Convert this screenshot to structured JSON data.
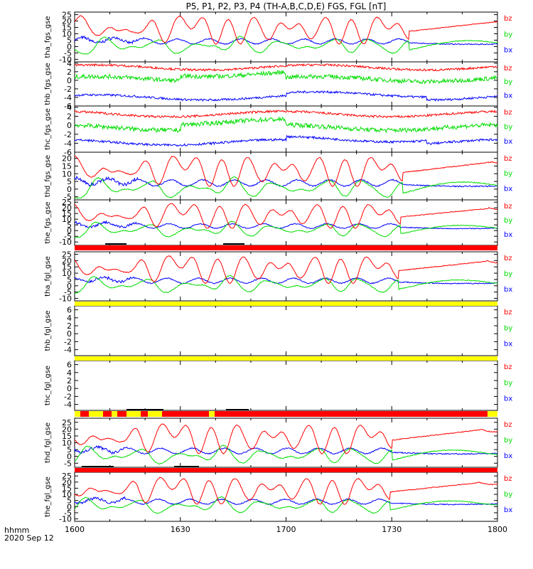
{
  "title": "P5, P1, P2, P3, P4 (TH-A,B,C,D,E) FGS, FGL [nT]",
  "footer": {
    "line1": "hhmm",
    "line2": "2020 Sep 12"
  },
  "colors": {
    "bx": "#0000ff",
    "by": "#00dd00",
    "bz": "#ff0000",
    "flag_red": "#ff0000",
    "flag_yellow": "#ffff00",
    "flag_black": "#000000"
  },
  "chart_data": {
    "type": "line",
    "x_label": "hhmm",
    "x_range": [
      "1600",
      "1800"
    ],
    "x_ticks": [
      "1600",
      "1630",
      "1700",
      "1730",
      "1800"
    ],
    "panels": [
      {
        "ylabel": "tha_fgs_gse",
        "y_range": [
          -12,
          27
        ],
        "y_ticks": [
          -10,
          -5,
          0,
          5,
          10,
          15,
          20,
          25
        ],
        "legend": [
          "bz",
          "by",
          "bx"
        ],
        "kind": "wavy"
      },
      {
        "ylabel": "thb_fgs_gse",
        "y_range": [
          -6,
          4.3
        ],
        "y_ticks": [
          -6,
          -4,
          -2,
          0,
          2,
          4
        ],
        "legend": [
          "bz",
          "by",
          "bx"
        ],
        "kind": "flat",
        "levels": {
          "bz": 3,
          "by": 0.3,
          "bx": -4
        }
      },
      {
        "ylabel": "thc_fgs_gse",
        "y_range": [
          -6,
          4.3
        ],
        "y_ticks": [
          -6,
          -4,
          -2,
          0,
          2,
          4
        ],
        "legend": [
          "bz",
          "by",
          "bx"
        ],
        "kind": "flat",
        "levels": {
          "bz": 2.5,
          "by": -0.5,
          "bx": -3.8
        }
      },
      {
        "ylabel": "thd_fgs_gse",
        "y_range": [
          -7,
          24
        ],
        "y_ticks": [
          -5,
          0,
          5,
          10,
          15,
          20
        ],
        "legend": [
          "bz",
          "by",
          "bx"
        ],
        "kind": "wavy"
      },
      {
        "ylabel": "the_fgs_gse",
        "y_range": [
          -13,
          27
        ],
        "y_ticks": [
          -10,
          -5,
          0,
          5,
          10,
          15,
          20,
          25
        ],
        "legend": [
          "bz",
          "by",
          "bx"
        ],
        "kind": "wavy"
      },
      {
        "ylabel": "tha_fgl_gse",
        "y_range": [
          -12,
          27
        ],
        "y_ticks": [
          -10,
          -5,
          0,
          5,
          10,
          15,
          20,
          25
        ],
        "legend": [
          "bz",
          "by",
          "bx"
        ],
        "kind": "wavy"
      },
      {
        "ylabel": "thb_fgl_gse",
        "y_range": [
          -5.5,
          7
        ],
        "y_ticks": [
          -4,
          -2,
          0,
          2,
          4,
          6
        ],
        "legend": [
          "bz",
          "by",
          "bx"
        ],
        "kind": "empty"
      },
      {
        "ylabel": "thc_fgl_gse",
        "y_range": [
          -5.5,
          7
        ],
        "y_ticks": [
          -4,
          -2,
          0,
          2,
          4,
          6
        ],
        "legend": [
          "bz",
          "by",
          "bx"
        ],
        "kind": "empty"
      },
      {
        "ylabel": "thd_fgl_gse",
        "y_range": [
          -8,
          28
        ],
        "y_ticks": [
          -5,
          0,
          5,
          10,
          15,
          20,
          25
        ],
        "legend": [
          "bz",
          "by",
          "bx"
        ],
        "kind": "wavy"
      },
      {
        "ylabel": "the_fgl_gse",
        "y_range": [
          -12,
          28
        ],
        "y_ticks": [
          -10,
          -5,
          0,
          5,
          10,
          15,
          20,
          25
        ],
        "legend": [
          "bz",
          "by",
          "bx"
        ],
        "kind": "wavy"
      }
    ]
  }
}
